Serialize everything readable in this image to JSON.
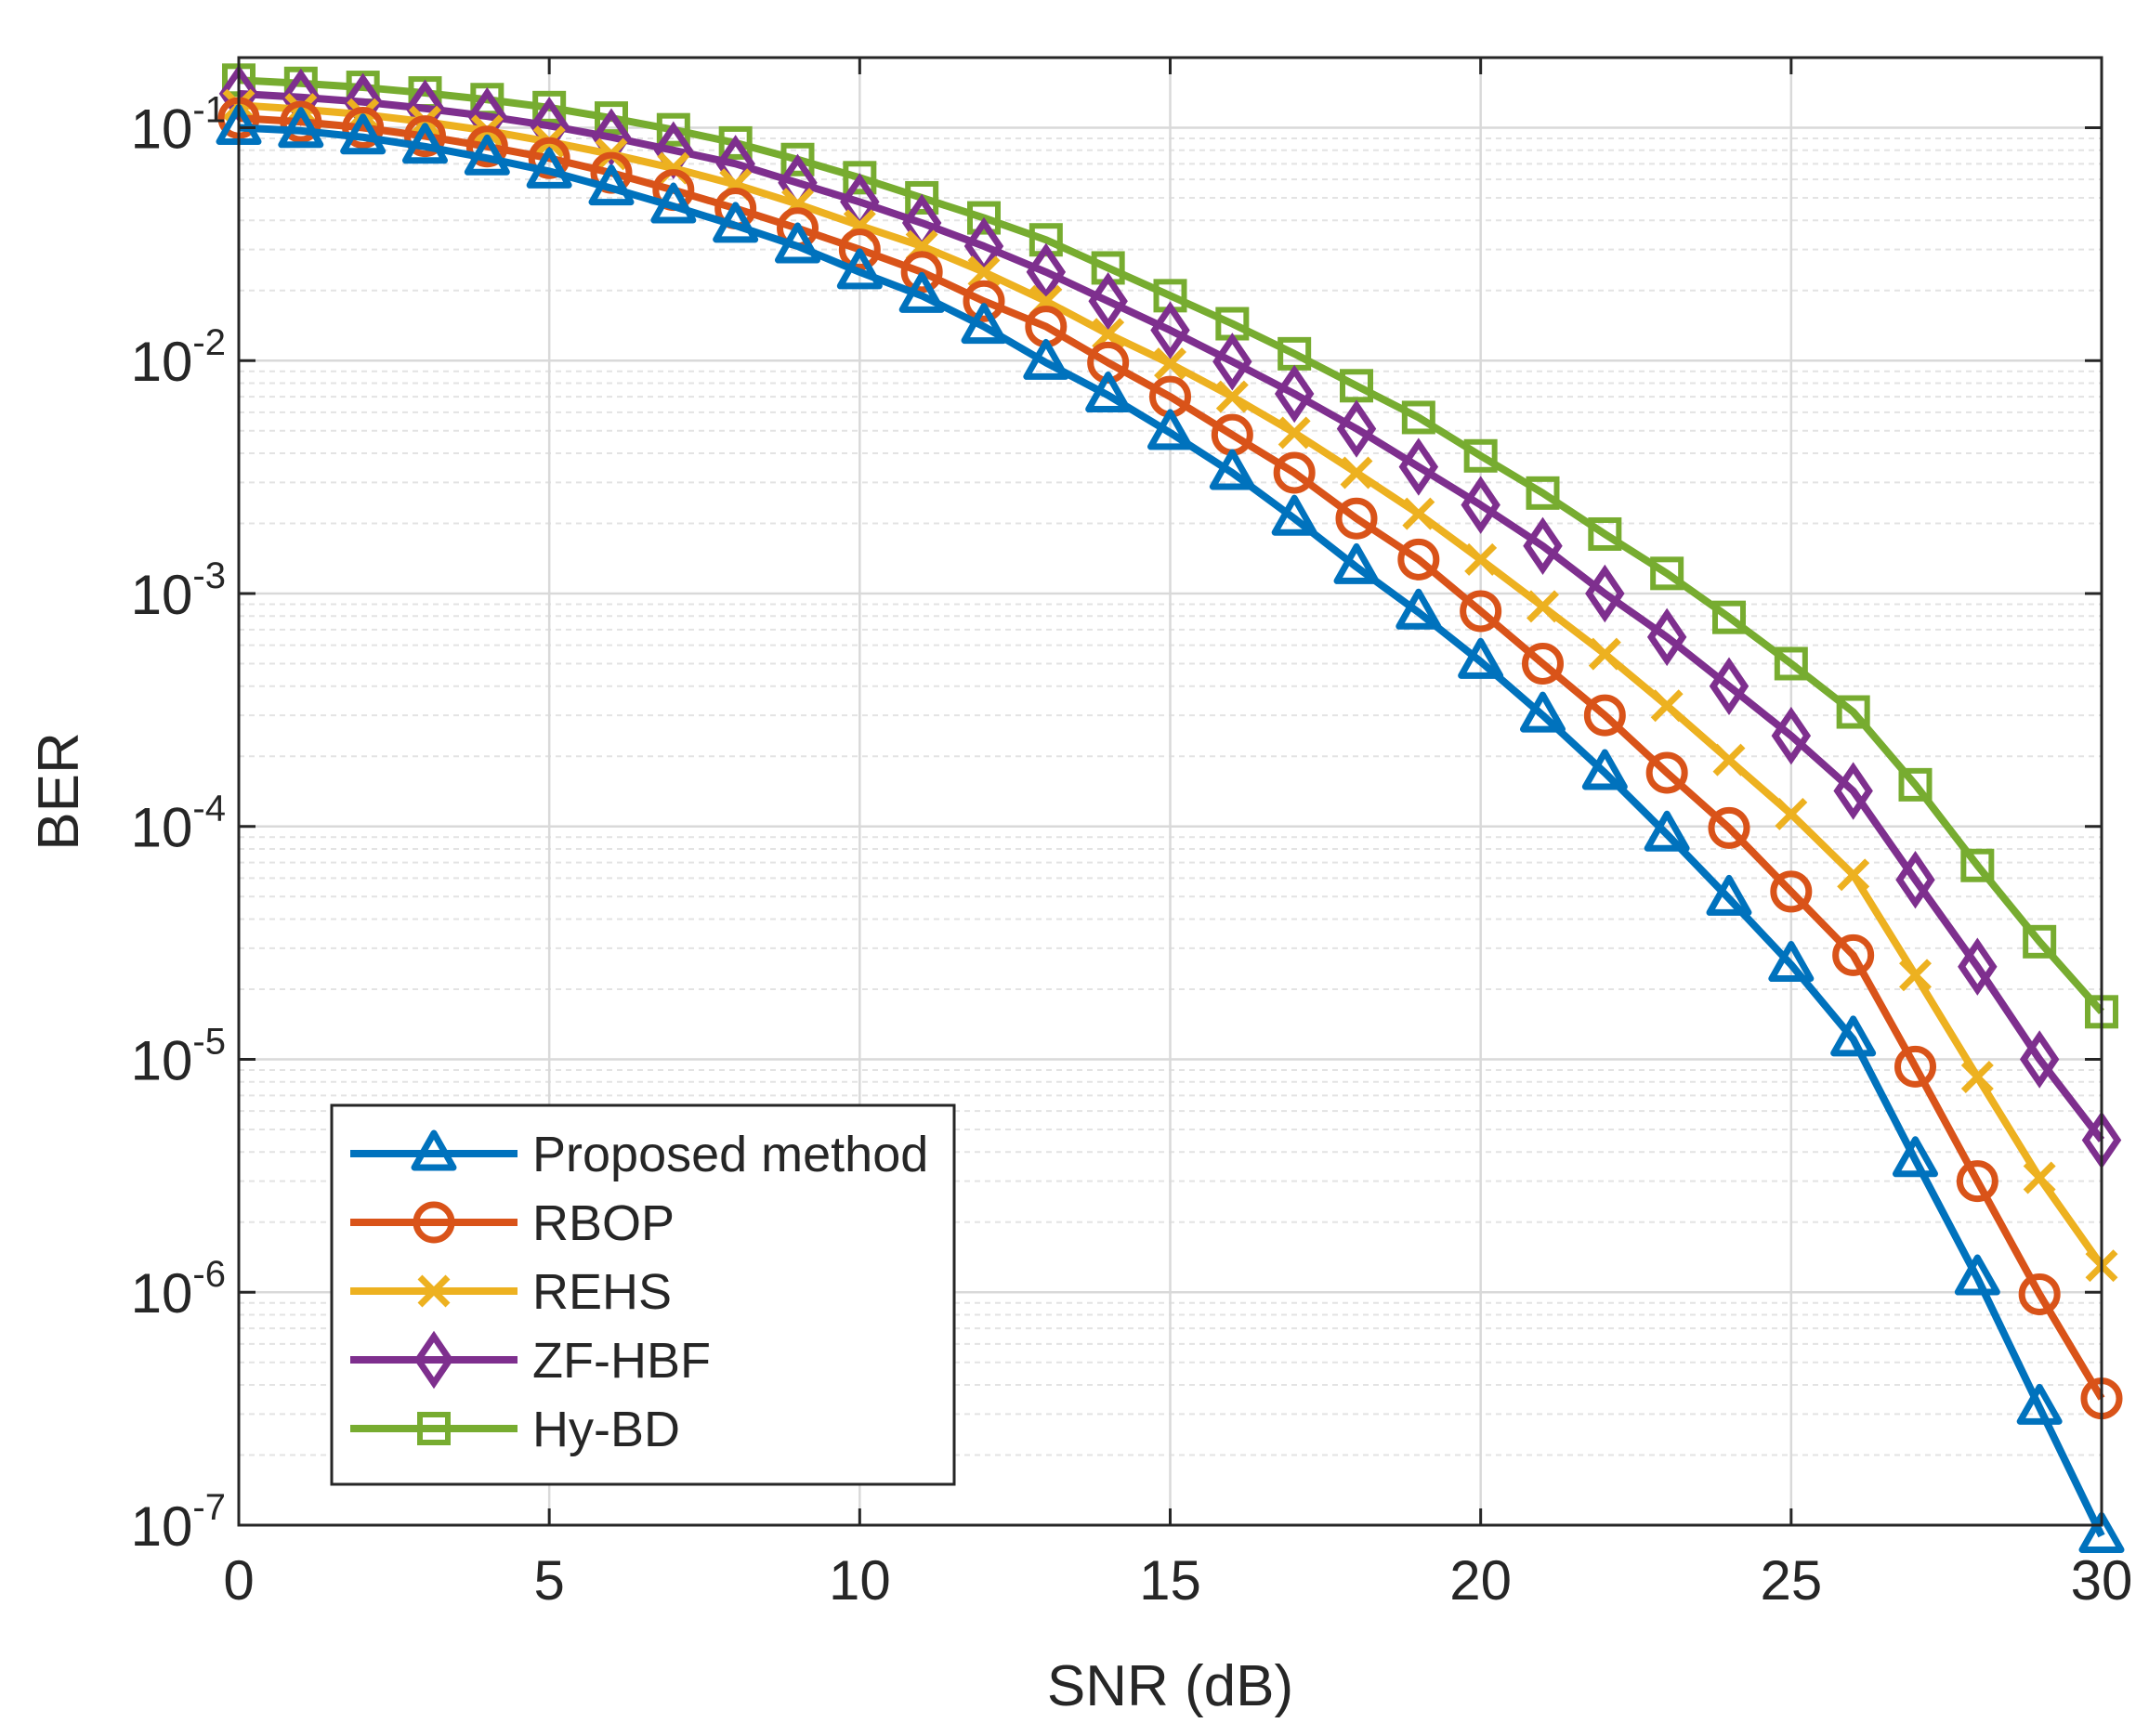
{
  "chart_data": {
    "type": "line",
    "yscale": "log",
    "xlabel": "SNR (dB)",
    "ylabel": "BER",
    "xlim": [
      0,
      30
    ],
    "ylim": [
      1e-07,
      0.2
    ],
    "xticks": [
      0,
      5,
      10,
      15,
      20,
      25,
      30
    ],
    "yticks": [
      {
        "base": "10",
        "exp": "-7",
        "value": 1e-07
      },
      {
        "base": "10",
        "exp": "-6",
        "value": 1e-06
      },
      {
        "base": "10",
        "exp": "-5",
        "value": 1e-05
      },
      {
        "base": "10",
        "exp": "-4",
        "value": 0.0001
      },
      {
        "base": "10",
        "exp": "-3",
        "value": 0.001
      },
      {
        "base": "10",
        "exp": "-2",
        "value": 0.01
      },
      {
        "base": "10",
        "exp": "-1",
        "value": 0.1
      }
    ],
    "grid": true,
    "legend_position": "bottom-left",
    "x": [
      0,
      1,
      2,
      3,
      4,
      5,
      6,
      7,
      8,
      9,
      10,
      11,
      12,
      13,
      14,
      15,
      16,
      17,
      18,
      19,
      20,
      21,
      22,
      23,
      24,
      25,
      26,
      27,
      28,
      29,
      30
    ],
    "series": [
      {
        "name": "Proposed method",
        "color": "#0072BD",
        "marker": "triangle",
        "values": [
          0.1,
          0.097,
          0.091,
          0.083,
          0.074,
          0.065,
          0.055,
          0.046,
          0.038,
          0.031,
          0.024,
          0.019,
          0.014,
          0.0098,
          0.0071,
          0.0049,
          0.0033,
          0.0021,
          0.0013,
          0.00083,
          0.00051,
          0.0003,
          0.00017,
          9.25e-05,
          4.9e-05,
          2.55e-05,
          1.22e-05,
          3.7e-06,
          1.15e-06,
          3.2e-07,
          9e-08
        ]
      },
      {
        "name": "RBOP",
        "color": "#D95319",
        "marker": "circle",
        "values": [
          0.11,
          0.106,
          0.1,
          0.092,
          0.083,
          0.074,
          0.064,
          0.054,
          0.045,
          0.037,
          0.03,
          0.024,
          0.018,
          0.014,
          0.0098,
          0.007,
          0.0048,
          0.0033,
          0.0021,
          0.0014,
          0.00084,
          0.0005,
          0.0003,
          0.00017,
          9.85e-05,
          5.25e-05,
          2.8e-05,
          9.3e-06,
          3e-06,
          9.8e-07,
          3.5e-07
        ]
      },
      {
        "name": "REHS",
        "color": "#EDB120",
        "marker": "x",
        "values": [
          0.125,
          0.12,
          0.114,
          0.106,
          0.097,
          0.087,
          0.077,
          0.067,
          0.057,
          0.047,
          0.038,
          0.031,
          0.024,
          0.018,
          0.013,
          0.0097,
          0.007,
          0.0049,
          0.0033,
          0.0022,
          0.0014,
          0.00088,
          0.00055,
          0.00033,
          0.000193,
          0.000113,
          6.2e-05,
          2.3e-05,
          8.4e-06,
          3.1e-06,
          1.3e-06
        ]
      },
      {
        "name": "ZF-HBF",
        "color": "#7E2F8E",
        "marker": "diamond",
        "values": [
          0.14,
          0.135,
          0.129,
          0.121,
          0.112,
          0.102,
          0.091,
          0.08,
          0.07,
          0.058,
          0.048,
          0.039,
          0.031,
          0.024,
          0.018,
          0.0135,
          0.0099,
          0.0072,
          0.0051,
          0.0035,
          0.0024,
          0.0016,
          0.001,
          0.00065,
          0.0004,
          0.000245,
          0.000142,
          5.9e-05,
          2.5e-05,
          1e-05,
          4.5e-06
        ]
      },
      {
        "name": "Hy-BD",
        "color": "#77AC30",
        "marker": "square",
        "values": [
          0.16,
          0.155,
          0.149,
          0.141,
          0.132,
          0.122,
          0.11,
          0.098,
          0.086,
          0.073,
          0.061,
          0.05,
          0.041,
          0.033,
          0.025,
          0.019,
          0.0144,
          0.0107,
          0.0078,
          0.0057,
          0.0039,
          0.0027,
          0.0018,
          0.00122,
          0.00079,
          0.0005,
          0.00031,
          0.000151,
          6.8e-05,
          3.2e-05,
          1.6e-05
        ]
      }
    ]
  }
}
